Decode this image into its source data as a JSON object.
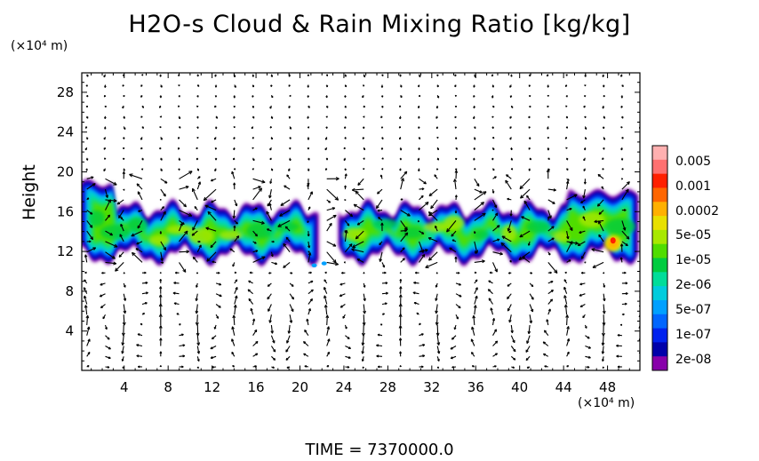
{
  "chart_data": {
    "type": "heatmap",
    "title": "H2O-s Cloud & Rain Mixing Ratio [kg/kg]",
    "ylabel": "Height",
    "x_unit": "(×10⁴ m)",
    "y_unit": "(×10⁴ m)",
    "xlim": [
      0,
      51
    ],
    "ylim": [
      0,
      30
    ],
    "x_ticks": [
      4,
      8,
      12,
      16,
      20,
      24,
      28,
      32,
      36,
      40,
      44,
      48
    ],
    "y_ticks": [
      4,
      8,
      12,
      16,
      20,
      24,
      28
    ],
    "colorbar": {
      "labels": [
        "0.005",
        "0.001",
        "0.0002",
        "5e-05",
        "1e-05",
        "2e-06",
        "5e-07",
        "1e-07",
        "2e-08"
      ],
      "colors": [
        "#ffb0b0",
        "#ff7070",
        "#ff2000",
        "#ff6600",
        "#ffb000",
        "#e8e000",
        "#a8e800",
        "#50dd00",
        "#00cc40",
        "#00dd99",
        "#00ccdd",
        "#00a0ff",
        "#0066ff",
        "#0022ee",
        "#0000aa",
        "#8800aa"
      ]
    },
    "cloud_layer": {
      "base": 11,
      "top": 16.5,
      "segments": [
        [
          0,
          21.8
        ],
        [
          23.5,
          51
        ]
      ],
      "elevated_tops": [
        [
          0,
          3,
          19.5
        ],
        [
          44.5,
          51,
          18.5
        ]
      ],
      "peak": {
        "x": 48.5,
        "y": 12.8,
        "value": "0.0002"
      }
    },
    "footer": "TIME = 7370000.0"
  }
}
